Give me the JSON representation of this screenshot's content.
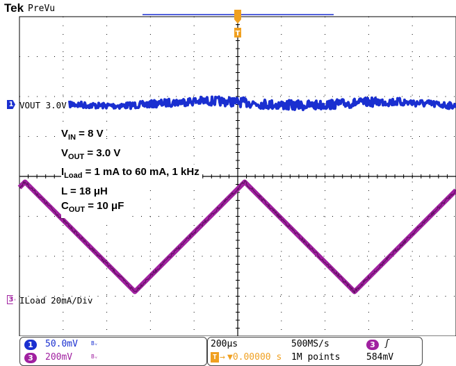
{
  "header": {
    "brand": "Tek",
    "mode": "PreVu"
  },
  "trigger": {
    "marker_glyph": "T",
    "color": "#f0a020"
  },
  "channels": {
    "ch1": {
      "number": "1",
      "label": "VOUT 3.0V",
      "color": "#1a2fd0"
    },
    "ch3": {
      "number": "3",
      "label": "ILoad 20mA/Div",
      "color": "#a020a0"
    }
  },
  "annotation": {
    "vin": {
      "sym": "V",
      "sub": "IN",
      "rest": " = 8 V"
    },
    "vout": {
      "sym": "V",
      "sub": "OUT",
      "rest": " = 3.0 V"
    },
    "iload": {
      "sym": "I",
      "sub": "Load",
      "rest": " = 1 mA to 60 mA, 1 kHz"
    },
    "l": {
      "text": "L = 18 μH"
    },
    "cout": {
      "sym": "C",
      "sub": "OUT",
      "rest": " = 10 μF"
    }
  },
  "footer": {
    "ch1": {
      "number": "1",
      "scale": "50.0mV",
      "bw": "Bᵥ"
    },
    "ch3": {
      "number": "3",
      "scale": "200mV",
      "bw": "Bᵥ"
    },
    "timebase": "200μs",
    "sample_rate": "500MS/s",
    "position": "▼0.00000 s",
    "record_length": "1M points",
    "trigger_source": "3",
    "trigger_slope": "ʃ",
    "trigger_level": "584mV"
  },
  "colors": {
    "ch1": "#1a2fd0",
    "ch3": "#a020a0",
    "trigger": "#f0a020",
    "graticule": "#000000"
  }
}
